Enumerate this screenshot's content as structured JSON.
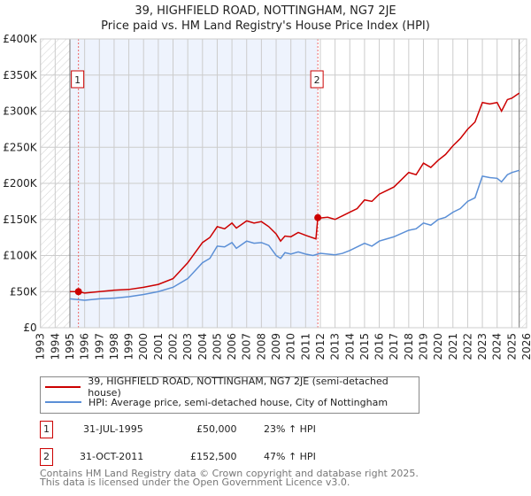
{
  "title": "39, HIGHFIELD ROAD, NOTTINGHAM, NG7 2JE",
  "subtitle": "Price paid vs. HM Land Registry's House Price Index (HPI)",
  "chart_data": {
    "type": "line",
    "xlim": [
      1993,
      2026
    ],
    "ylim": [
      0,
      400000
    ],
    "yticks": [
      0,
      50000,
      100000,
      150000,
      200000,
      250000,
      300000,
      350000,
      400000
    ],
    "ytick_labels": [
      "£0",
      "£50K",
      "£100K",
      "£150K",
      "£200K",
      "£250K",
      "£300K",
      "£350K",
      "£400K"
    ],
    "xticks": [
      1993,
      1994,
      1995,
      1996,
      1997,
      1998,
      1999,
      2000,
      2001,
      2002,
      2003,
      2004,
      2005,
      2006,
      2007,
      2008,
      2009,
      2010,
      2011,
      2012,
      2013,
      2014,
      2015,
      2016,
      2017,
      2018,
      2019,
      2020,
      2021,
      2022,
      2023,
      2024,
      2025,
      2026
    ],
    "hatched_ranges": [
      [
        1993,
        1995
      ],
      [
        2025.5,
        2026
      ]
    ],
    "shaded_range": [
      1995,
      2011.83
    ],
    "grid": true,
    "series": [
      {
        "name": "39, HIGHFIELD ROAD, NOTTINGHAM, NG7 2JE (semi-detached house)",
        "color": "#cc0000",
        "x": [
          1995.0,
          1995.58,
          1996,
          1997,
          1998,
          1999,
          2000,
          2001,
          2002,
          2003,
          2004,
          2004.5,
          2005,
          2005.5,
          2006,
          2006.3,
          2007,
          2007.5,
          2008,
          2008.5,
          2009,
          2009.3,
          2009.6,
          2010,
          2010.5,
          2011,
          2011.7,
          2011.83,
          2012,
          2012.5,
          2013,
          2013.5,
          2014,
          2014.5,
          2015,
          2015.5,
          2016,
          2016.5,
          2017,
          2017.5,
          2018,
          2018.5,
          2019,
          2019.5,
          2020,
          2020.5,
          2021,
          2021.5,
          2022,
          2022.5,
          2023,
          2023.5,
          2024,
          2024.3,
          2024.7,
          2025,
          2025.5
        ],
        "y": [
          50000,
          50000,
          48000,
          50000,
          52000,
          53000,
          56000,
          60000,
          68000,
          90000,
          118000,
          125000,
          140000,
          137000,
          145000,
          138000,
          148000,
          145000,
          147000,
          140000,
          130000,
          120000,
          127000,
          126000,
          132000,
          128000,
          123000,
          152500,
          152000,
          153000,
          150000,
          155000,
          160000,
          165000,
          177000,
          175000,
          185000,
          190000,
          195000,
          205000,
          215000,
          212000,
          228000,
          222000,
          232000,
          240000,
          252000,
          262000,
          275000,
          285000,
          312000,
          310000,
          312000,
          300000,
          316000,
          318000,
          325000
        ]
      },
      {
        "name": "HPI: Average price, semi-detached house, City of Nottingham",
        "color": "#5b8fd6",
        "x": [
          1995,
          1996,
          1997,
          1998,
          1999,
          2000,
          2001,
          2002,
          2003,
          2004,
          2004.5,
          2005,
          2005.5,
          2006,
          2006.3,
          2007,
          2007.5,
          2008,
          2008.5,
          2009,
          2009.3,
          2009.6,
          2010,
          2010.5,
          2011,
          2011.5,
          2012,
          2013,
          2013.5,
          2014,
          2015,
          2015.5,
          2016,
          2016.5,
          2017,
          2018,
          2018.5,
          2019,
          2019.5,
          2020,
          2020.5,
          2021,
          2021.5,
          2022,
          2022.5,
          2023,
          2023.5,
          2024,
          2024.3,
          2024.7,
          2025,
          2025.5
        ],
        "y": [
          40000,
          38000,
          40000,
          41000,
          43000,
          46000,
          50000,
          56000,
          68000,
          90000,
          96000,
          113000,
          112000,
          118000,
          110000,
          120000,
          117000,
          118000,
          114000,
          100000,
          96000,
          104000,
          102000,
          105000,
          102000,
          100000,
          103000,
          101000,
          103000,
          107000,
          117000,
          113000,
          120000,
          123000,
          126000,
          135000,
          137000,
          145000,
          142000,
          150000,
          153000,
          160000,
          165000,
          175000,
          180000,
          210000,
          208000,
          207000,
          202000,
          212000,
          215000,
          218000
        ]
      }
    ],
    "sales": [
      {
        "label": "1",
        "x": 1995.58,
        "y": 50000
      },
      {
        "label": "2",
        "x": 2011.83,
        "y": 152500
      }
    ]
  },
  "legend": {
    "items": [
      "39, HIGHFIELD ROAD, NOTTINGHAM, NG7 2JE (semi-detached house)",
      "HPI: Average price, semi-detached house, City of Nottingham"
    ]
  },
  "transactions": [
    {
      "num": "1",
      "date": "31-JUL-1995",
      "price": "£50,000",
      "hpi": "23% ↑ HPI"
    },
    {
      "num": "2",
      "date": "31-OCT-2011",
      "price": "£152,500",
      "hpi": "47% ↑ HPI"
    }
  ],
  "footer": {
    "line1": "Contains HM Land Registry data © Crown copyright and database right 2025.",
    "line2": "This data is licensed under the Open Government Licence v3.0."
  }
}
